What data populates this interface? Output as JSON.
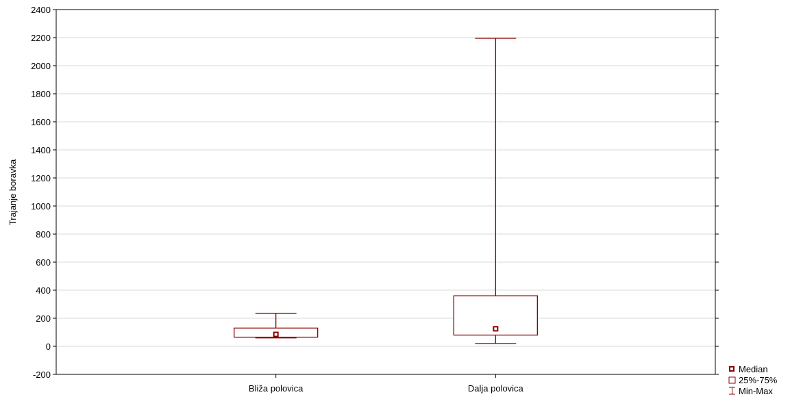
{
  "chart_data": {
    "type": "box",
    "ylabel": "Trajanje boravka",
    "xlabel": "",
    "ylim": [
      -200,
      2400
    ],
    "yticks": [
      -200,
      0,
      200,
      400,
      600,
      800,
      1000,
      1200,
      1400,
      1600,
      1800,
      2000,
      2200,
      2400
    ],
    "grid": true,
    "categories": [
      "Bliža polovica",
      "Dalja polovica"
    ],
    "boxes": [
      {
        "category": "Bliža polovica",
        "min": 60,
        "q1": 65,
        "median": 85,
        "q3": 130,
        "max": 235
      },
      {
        "category": "Dalja polovica",
        "min": 20,
        "q1": 80,
        "median": 125,
        "q3": 360,
        "max": 2195
      }
    ],
    "legend": {
      "position": "bottom-right",
      "items": [
        "Median",
        "25%-75%",
        "Min-Max"
      ]
    },
    "color": "#8b0000"
  }
}
